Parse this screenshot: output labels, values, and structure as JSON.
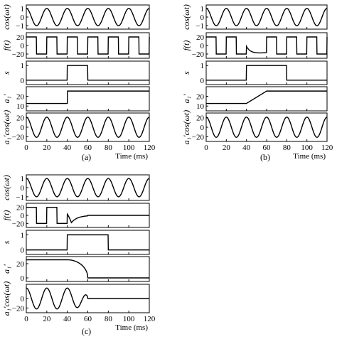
{
  "chart_data": [
    {
      "id": "a",
      "type": "line",
      "caption": "(a)",
      "xlabel": "Time (ms)",
      "x_ticks": [
        "0",
        "20",
        "40",
        "60",
        "80",
        "100",
        "120"
      ],
      "xlim": [
        0,
        120
      ],
      "panels": [
        {
          "ylabel": "cos(ωt)",
          "ylim": [
            -1.4,
            1.4
          ],
          "y_ticks": [
            "1",
            "0",
            "−1"
          ],
          "y_tick_values": [
            1,
            0,
            -1
          ],
          "signal": {
            "kind": "cos",
            "amplitude": 1,
            "freq_hz": 50
          }
        },
        {
          "ylabel": "f(t)",
          "ylim": [
            -30,
            30
          ],
          "y_ticks": [
            "20",
            "0",
            "−20"
          ],
          "y_tick_values": [
            20,
            0,
            -20
          ],
          "signal": {
            "kind": "square",
            "high": 20,
            "low": -20,
            "period_ms": 20,
            "phase_ms": 0
          }
        },
        {
          "ylabel": "s",
          "ylim": [
            -0.3,
            1.3
          ],
          "y_ticks": [
            "1",
            "0"
          ],
          "y_tick_values": [
            1,
            0
          ],
          "signal": {
            "kind": "pulse",
            "on_ms": 40,
            "off_ms": 60
          }
        },
        {
          "ylabel": "a₁'",
          "ylim": [
            5,
            30
          ],
          "y_ticks": [
            "20",
            "10"
          ],
          "y_tick_values": [
            20,
            10
          ],
          "signal": {
            "kind": "step",
            "points": [
              [
                0,
                12.7
              ],
              [
                40,
                12.7
              ],
              [
                40,
                25.5
              ],
              [
                120,
                25.5
              ]
            ]
          }
        },
        {
          "ylabel": "a₁'cos(ωt)",
          "ylim": [
            -30,
            30
          ],
          "y_ticks": [
            "20",
            "0",
            "−20"
          ],
          "y_tick_values": [
            20,
            0,
            -20
          ],
          "signal": {
            "kind": "amcos",
            "freq_hz": 50
          }
        }
      ]
    },
    {
      "id": "b",
      "type": "line",
      "caption": "(b)",
      "xlabel": "Time (ms)",
      "x_ticks": [
        "0",
        "20",
        "40",
        "60",
        "80",
        "100",
        "120"
      ],
      "xlim": [
        0,
        120
      ],
      "panels": [
        {
          "ylabel": "cos(ωt)",
          "ylim": [
            -1.4,
            1.4
          ],
          "y_ticks": [
            "1",
            "0",
            "−1"
          ],
          "y_tick_values": [
            1,
            0,
            -1
          ],
          "signal": {
            "kind": "cos",
            "amplitude": 1,
            "freq_hz": 50
          }
        },
        {
          "ylabel": "f(t)",
          "ylim": [
            -30,
            30
          ],
          "y_ticks": [
            "20",
            "0",
            "−20"
          ],
          "y_tick_values": [
            20,
            0,
            -20
          ],
          "signal": {
            "kind": "square_ramp"
          }
        },
        {
          "ylabel": "s",
          "ylim": [
            -0.3,
            1.3
          ],
          "y_ticks": [
            "1",
            "0"
          ],
          "y_tick_values": [
            1,
            0
          ],
          "signal": {
            "kind": "pulse",
            "on_ms": 40,
            "off_ms": 80
          }
        },
        {
          "ylabel": "a₁'",
          "ylim": [
            5,
            30
          ],
          "y_ticks": [
            "20",
            "10"
          ],
          "y_tick_values": [
            20,
            10
          ],
          "signal": {
            "kind": "step",
            "points": [
              [
                0,
                12.7
              ],
              [
                40,
                12.7
              ],
              [
                60,
                25.5
              ],
              [
                120,
                25.5
              ]
            ]
          }
        },
        {
          "ylabel": "a₁'cos(ωt)",
          "ylim": [
            -30,
            30
          ],
          "y_ticks": [
            "20",
            "0",
            "−20"
          ],
          "y_tick_values": [
            20,
            0,
            -20
          ],
          "signal": {
            "kind": "amcos",
            "freq_hz": 50
          }
        }
      ]
    },
    {
      "id": "c",
      "type": "line",
      "caption": "(c)",
      "xlabel": "Time (ms)",
      "x_ticks": [
        "0",
        "20",
        "40",
        "60",
        "80",
        "100",
        "120"
      ],
      "xlim": [
        0,
        120
      ],
      "panels": [
        {
          "ylabel": "cos(ωt)",
          "ylim": [
            -1.4,
            1.4
          ],
          "y_ticks": [
            "1",
            "0",
            "−1"
          ],
          "y_tick_values": [
            1,
            0,
            -1
          ],
          "signal": {
            "kind": "cos",
            "amplitude": 1,
            "freq_hz": 50
          }
        },
        {
          "ylabel": "f(t)",
          "ylim": [
            -30,
            30
          ],
          "y_ticks": [
            "20",
            "0",
            "−20"
          ],
          "y_tick_values": [
            20,
            0,
            -20
          ],
          "signal": {
            "kind": "square_decay"
          }
        },
        {
          "ylabel": "s",
          "ylim": [
            -0.3,
            1.3
          ],
          "y_ticks": [
            "1",
            "0"
          ],
          "y_tick_values": [
            1,
            0
          ],
          "signal": {
            "kind": "pulse",
            "on_ms": 40,
            "off_ms": 80
          }
        },
        {
          "ylabel": "a₁'",
          "ylim": [
            -5,
            30
          ],
          "y_ticks": [
            "20",
            "0"
          ],
          "y_tick_values": [
            20,
            0
          ],
          "signal": {
            "kind": "decay",
            "points": [
              [
                0,
                25.5
              ],
              [
                40,
                25.5
              ],
              [
                60,
                0
              ],
              [
                120,
                0
              ]
            ]
          }
        },
        {
          "ylabel": "a₁'cos(ωt)",
          "ylim": [
            -30,
            30
          ],
          "y_ticks": [
            "0",
            "−20"
          ],
          "y_tick_values": [
            0,
            -20
          ],
          "signal": {
            "kind": "amcos_decay",
            "freq_hz": 50
          }
        }
      ]
    }
  ]
}
